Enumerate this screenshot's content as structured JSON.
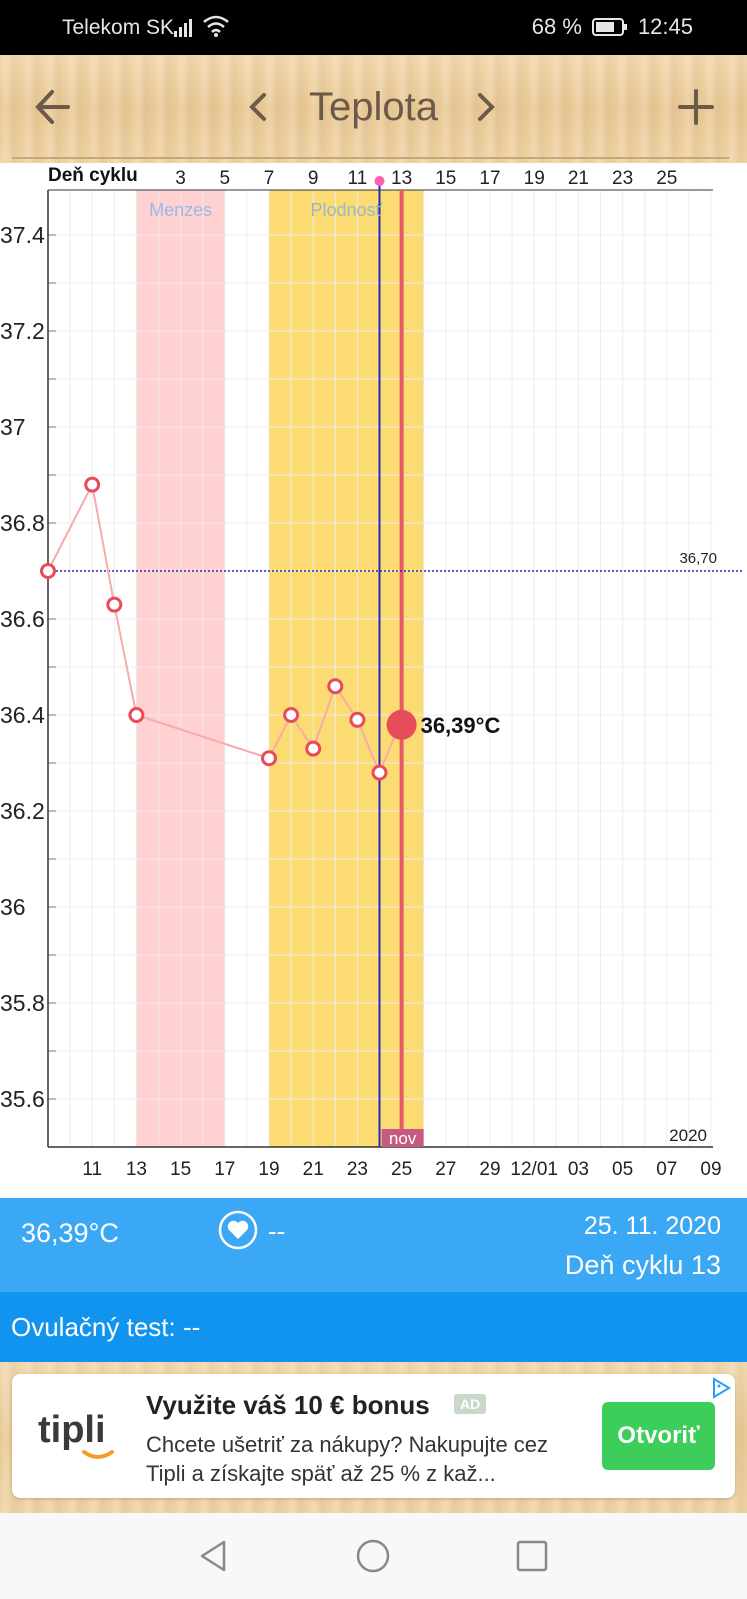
{
  "status_bar": {
    "carrier": "Telekom SK",
    "battery": "68 %",
    "time": "12:45"
  },
  "header": {
    "title": "Teplota"
  },
  "chart_data": {
    "type": "line",
    "top_axis_label": "Deň cyklu",
    "top_ticks": [
      "3",
      "5",
      "7",
      "9",
      "11",
      "13",
      "15",
      "17",
      "19",
      "21",
      "23",
      "25"
    ],
    "x_ticks": [
      "11",
      "13",
      "15",
      "17",
      "19",
      "21",
      "23",
      "25",
      "27",
      "29",
      "12/01",
      "03",
      "05",
      "07",
      "09"
    ],
    "y_ticks": [
      "37.4",
      "37.2",
      "37",
      "36.8",
      "36.6",
      "36.4",
      "36.2",
      "36",
      "35.8",
      "35.6"
    ],
    "ylim": [
      35.5,
      37.5
    ],
    "year_label": "2020",
    "x": [
      "2020-11-10",
      "2020-11-11",
      "2020-11-12",
      "2020-11-13",
      "2020-11-19",
      "2020-11-20",
      "2020-11-21",
      "2020-11-22",
      "2020-11-23",
      "2020-11-24",
      "2020-11-25"
    ],
    "values": [
      36.7,
      36.88,
      36.63,
      36.4,
      36.31,
      36.4,
      36.33,
      36.46,
      36.39,
      36.28,
      36.39
    ],
    "highlight": {
      "x": "2020-11-25",
      "value": 36.39,
      "label": "36,39°C"
    },
    "reference_line": {
      "value": 36.7,
      "label": "36,70"
    },
    "periods": [
      {
        "label": "Menzes",
        "start": "2020-11-13",
        "end": "2020-11-16",
        "color": "#ffd1d1",
        "text_color": "#9cb8e8"
      },
      {
        "label": "Plodnosť",
        "start": "2020-11-19",
        "end": "2020-11-25",
        "color": "#fbdb72",
        "text_color": "#9ab8c8"
      }
    ],
    "markers": {
      "ovulation_line": "2020-11-24",
      "today_line": "2020-11-25",
      "today_label": "nov"
    },
    "colors": {
      "line": "#f7aaaa",
      "point": "#e74c5a",
      "ovulation": "#2a2ab8",
      "today": "#e55a66"
    }
  },
  "info": {
    "temperature": "36,39°C",
    "heart_value": "--",
    "date": "25. 11. 2020",
    "cycle_day": "Deň cyklu 13",
    "ovulation_test": "Ovulačný test: --"
  },
  "ad": {
    "headline": "Využite váš 10 € bonus",
    "badge": "AD",
    "body": "Chcete ušetriť za nákupy? Nakupujte cez Tipli a získajte späť až 25 % z kaž...",
    "cta": "Otvoriť",
    "logo_text": "tipli"
  }
}
